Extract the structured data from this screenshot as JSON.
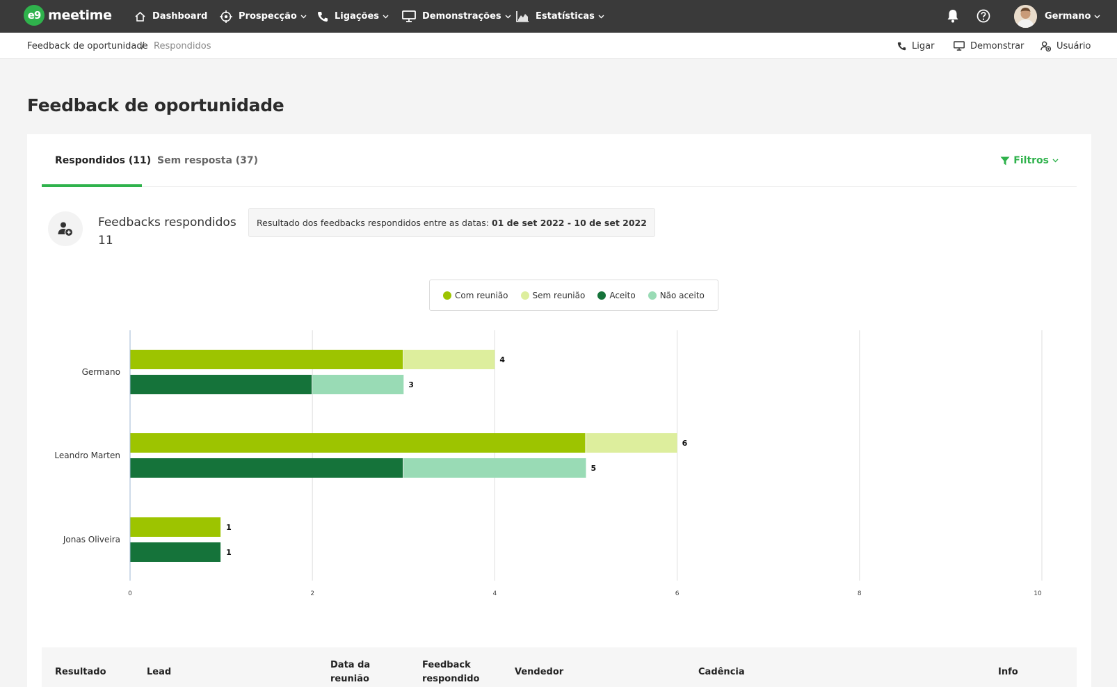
{
  "app": {
    "name": "meetime",
    "logo_glyph": "e9"
  },
  "nav": {
    "dashboard": "Dashboard",
    "prospeccao": "Prospecção",
    "ligacoes": "Ligações",
    "demonstracoes": "Demonstrações",
    "estatisticas": "Estatísticas",
    "user": "Germano"
  },
  "breadcrumb": {
    "parent": "Feedback de oportunidade",
    "separator": "/",
    "current": "Respondidos"
  },
  "actions": {
    "call": "Ligar",
    "demo": "Demonstrar",
    "user": "Usuário"
  },
  "page": {
    "title": "Feedback de oportunidade"
  },
  "tabs": [
    {
      "label": "Respondidos (11)",
      "active": true
    },
    {
      "label": "Sem resposta (37)",
      "active": false
    }
  ],
  "filters": {
    "label": "Filtros"
  },
  "stats": {
    "label": "Feedbacks respondidos",
    "value": "11"
  },
  "result": {
    "text": "Resultado dos feedbacks respondidos entre as datas:",
    "dates": "01 de set 2022 - 10 de set 2022"
  },
  "colors": {
    "accent": "#2fb24c",
    "com_reuniao": "#9dc400",
    "sem_reuniao": "#ddee9d",
    "aceito": "#15733a",
    "nao_aceito": "#99dbb5"
  },
  "chart_data": {
    "type": "bar",
    "orientation": "horizontal",
    "stacked": true,
    "categories": [
      "Germano",
      "Leandro Marten",
      "Jonas Oliveira"
    ],
    "legend": [
      "Com reunião",
      "Sem reunião",
      "Aceito",
      "Não aceito"
    ],
    "groups": [
      {
        "series": [
          "Com reunião",
          "Sem reunião"
        ],
        "values": [
          [
            3,
            1
          ],
          [
            5,
            1
          ],
          [
            1,
            0
          ]
        ],
        "totals": [
          "4",
          "6",
          "1"
        ]
      },
      {
        "series": [
          "Aceito",
          "Não aceito"
        ],
        "values": [
          [
            2,
            1
          ],
          [
            3,
            2
          ],
          [
            1,
            0
          ]
        ],
        "totals": [
          "3",
          "5",
          "1"
        ]
      }
    ],
    "xlim": [
      0,
      10
    ],
    "xticks": [
      "0",
      "2",
      "4",
      "6",
      "8",
      "10"
    ],
    "grid": true,
    "legend_position": "top-center"
  },
  "table": {
    "headers": [
      "Resultado",
      "Lead",
      "Data da reunião",
      "Feedback respondido",
      "Vendedor",
      "Cadência",
      "Info"
    ]
  }
}
